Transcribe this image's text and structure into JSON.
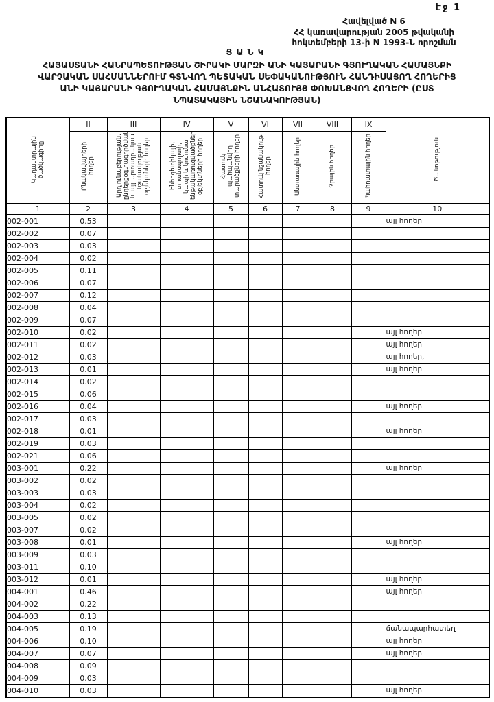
{
  "page": {
    "page_number": "Էջ 1",
    "appendix": {
      "line1": "Հավելված N 6",
      "line2": "ՀՀ կառավարության 2005 թվականի",
      "line3": "հոկտեմբերի 13-ի N 1993-Ն որոշման"
    },
    "title": {
      "caption": "ՑԱՆԿ",
      "line1": "ՀԱՅԱՍՏԱՆԻ ՀԱՆՐԱՊԵՏՈՒԹՅԱՆ ՇԻՐԱԿԻ ՄԱՐԶԻ ԱՆԻ ԿԱՅԱՐԱՆԻ ԳՅՈՒՂԱԿԱՆ ՀԱՄԱՅՆՔԻ",
      "line2": "ՎԱՐՉԱԿԱՆ ՍԱՀՄԱՆՆԵՐՈՒՄ ԳՏՆՎՈՂ ՊԵՏԱԿԱՆ ՍԵՓԱԿԱՆՈՒԹՅՈՒՆ ՀԱՆԴԻՍԱՑՈՂ ՀՈՂԵՐԻՑ",
      "line3": "ԱՆԻ ԿԱՅԱՐԱՆԻ ԳՅՈՒՂԱԿԱՆ ՀԱՄԱՅՆՔԻՆ ԱՆՀԱՏՈՒՅՑ ՓՈԽԱՆՑՎՈՂ ՀՈՂԵՐԻ (ԸՍՏ",
      "line4": "ՆՊԱՏԱԿԱՅԻՆ ՆՇԱՆԱԿՈՒԹՅԱՆ)"
    }
  },
  "table": {
    "roman_numerals": [
      "II",
      "III",
      "IV",
      "V",
      "VI",
      "VII",
      "VIII",
      "IX"
    ],
    "column_headers": [
      "Կադաստրային ծածկագիրը",
      "Բնակավայրերի հողեր",
      "Արդյունաբերության, ընդերքօգտագործման և այլ արտադրական նշանակության օբյեկտների հողեր",
      "Էներգետիկայի, տրանսպորտի, կապի և կոմունալ ենթակառուցվածքների օբյեկտների հողեր",
      "Հատուկ պահպանվող տարածքների հողեր",
      "Հատուկ նշանակութ. հողեր",
      "Անտառային հողեր",
      "Ջրային հողեր",
      "Պահուստային հողեր",
      "Ծանոթություն"
    ],
    "column_numbers": [
      "1",
      "2",
      "3",
      "4",
      "5",
      "6",
      "7",
      "8",
      "9",
      "10"
    ],
    "rows": [
      {
        "code": "002-001",
        "value": "0.53",
        "note": "այլ հողեր"
      },
      {
        "code": "002-002",
        "value": "0.07",
        "note": ""
      },
      {
        "code": "002-003",
        "value": "0.03",
        "note": ""
      },
      {
        "code": "002-004",
        "value": "0.02",
        "note": ""
      },
      {
        "code": "002-005",
        "value": "0.11",
        "note": ""
      },
      {
        "code": "002-006",
        "value": "0.07",
        "note": ""
      },
      {
        "code": "002-007",
        "value": "0.12",
        "note": ""
      },
      {
        "code": "002-008",
        "value": "0.04",
        "note": ""
      },
      {
        "code": "002-009",
        "value": "0.07",
        "note": ""
      },
      {
        "code": "002-010",
        "value": "0.02",
        "note": "այլ հողեր"
      },
      {
        "code": "002-011",
        "value": "0.02",
        "note": "այլ հողեր"
      },
      {
        "code": "002-012",
        "value": "0.03",
        "note": "այլ հողեր,"
      },
      {
        "code": "002-013",
        "value": "0.01",
        "note": "այլ հողեր"
      },
      {
        "code": "002-014",
        "value": "0.02",
        "note": ""
      },
      {
        "code": "002-015",
        "value": "0.06",
        "note": ""
      },
      {
        "code": "002-016",
        "value": "0.04",
        "note": "այլ հողեր"
      },
      {
        "code": "002-017",
        "value": "0.03",
        "note": ""
      },
      {
        "code": "002-018",
        "value": "0.01",
        "note": "այլ հողեր"
      },
      {
        "code": "002-019",
        "value": "0.03",
        "note": ""
      },
      {
        "code": "002-021",
        "value": "0.06",
        "note": ""
      },
      {
        "code": "003-001",
        "value": "0.22",
        "note": "այլ հողեր"
      },
      {
        "code": "003-002",
        "value": "0.02",
        "note": ""
      },
      {
        "code": "003-003",
        "value": "0.03",
        "note": ""
      },
      {
        "code": "003-004",
        "value": "0.02",
        "note": ""
      },
      {
        "code": "003-005",
        "value": "0.02",
        "note": ""
      },
      {
        "code": "003-007",
        "value": "0.02",
        "note": ""
      },
      {
        "code": "003-008",
        "value": "0.01",
        "note": "այլ հողեր"
      },
      {
        "code": "003-009",
        "value": "0.03",
        "note": ""
      },
      {
        "code": "003-011",
        "value": "0.10",
        "note": ""
      },
      {
        "code": "003-012",
        "value": "0.01",
        "note": "այլ հողեր"
      },
      {
        "code": "004-001",
        "value": "0.46",
        "note": "այլ հողեր"
      },
      {
        "code": "004-002",
        "value": "0.22",
        "note": ""
      },
      {
        "code": "004-003",
        "value": "0.13",
        "note": ""
      },
      {
        "code": "004-005",
        "value": "0.19",
        "note": "ճանապարհատեղ"
      },
      {
        "code": "004-006",
        "value": "0.10",
        "note": "այլ հողեր"
      },
      {
        "code": "004-007",
        "value": "0.07",
        "note": "այլ հողեր"
      },
      {
        "code": "004-008",
        "value": "0.09",
        "note": ""
      },
      {
        "code": "004-009",
        "value": "0.03",
        "note": ""
      },
      {
        "code": "004-010",
        "value": "0.03",
        "note": "այլ հողեր"
      }
    ]
  }
}
